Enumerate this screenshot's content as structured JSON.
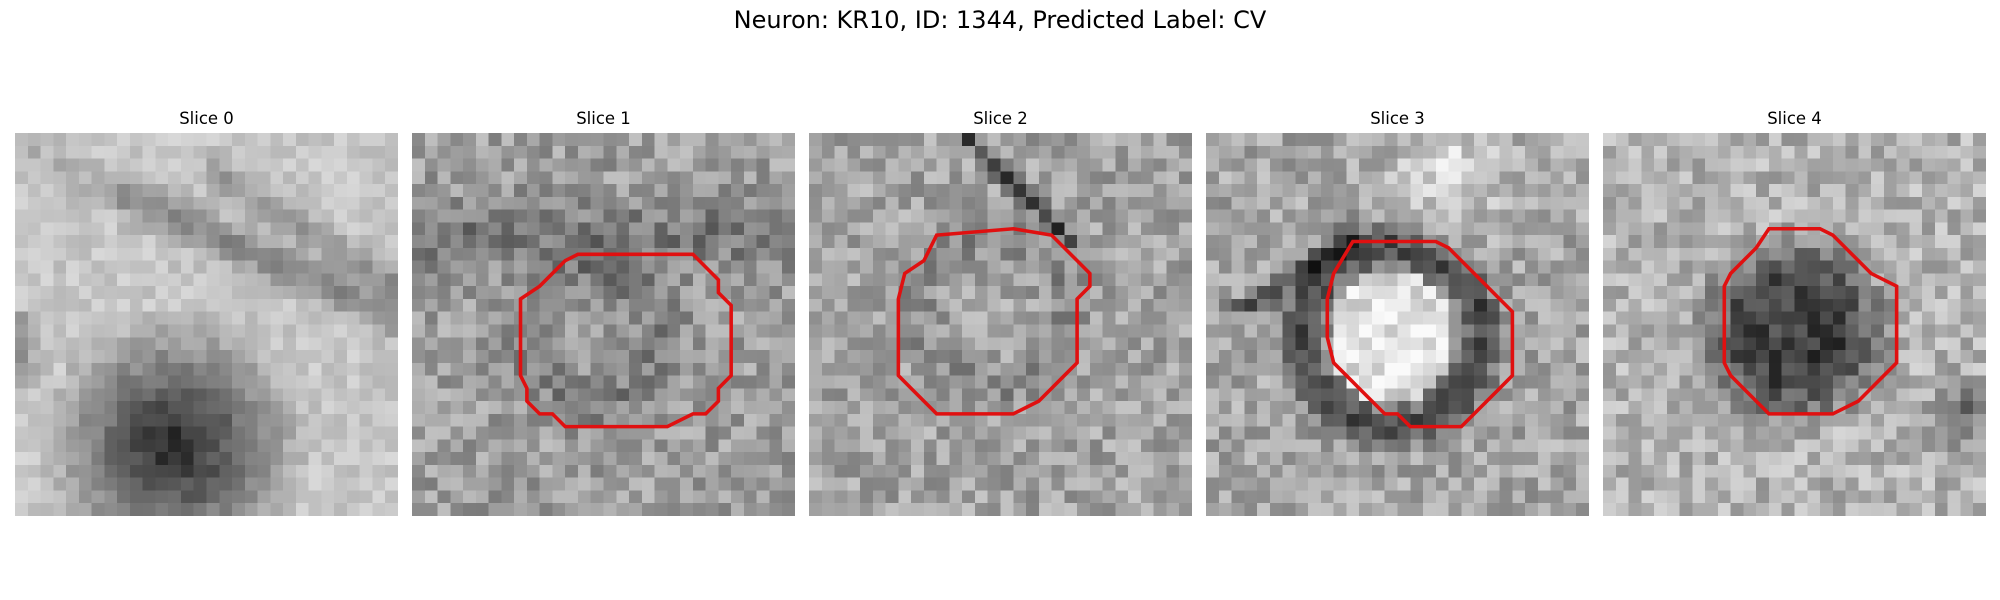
{
  "figure": {
    "title": "Neuron: KR10, ID: 1344, Predicted Label: CV"
  },
  "panels": [
    {
      "title": "Slice 0",
      "has_contour": false
    },
    {
      "title": "Slice 1",
      "has_contour": true
    },
    {
      "title": "Slice 2",
      "has_contour": true
    },
    {
      "title": "Slice 3",
      "has_contour": true
    },
    {
      "title": "Slice 4",
      "has_contour": true
    }
  ],
  "colors": {
    "contour": "#e01010",
    "background": "#ffffff"
  },
  "image_style": "grayscale pixelated microscopy patches (30x30)"
}
